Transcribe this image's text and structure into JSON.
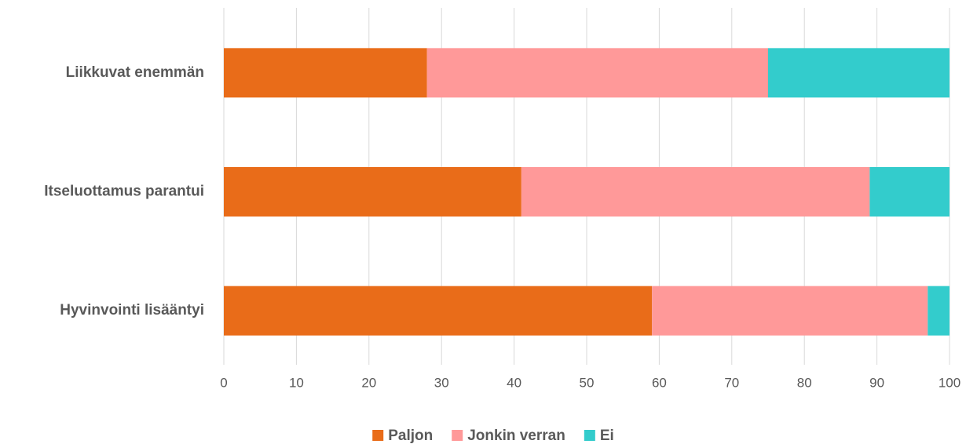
{
  "chart_data": {
    "type": "stacked_bar_horizontal",
    "categories": [
      "Liikkuvat enemmän",
      "Itseluottamus parantui",
      "Hyvinvointi lisääntyi"
    ],
    "series": [
      {
        "name": "Paljon",
        "color": "#e96c19",
        "values": [
          28,
          41,
          59
        ]
      },
      {
        "name": "Jonkin verran",
        "color": "#ff9999",
        "values": [
          47,
          48,
          38
        ]
      },
      {
        "name": "Ei",
        "color": "#33cccc",
        "values": [
          25,
          11,
          3
        ]
      }
    ],
    "xlim": [
      0,
      100
    ],
    "xticks": [
      0,
      10,
      20,
      30,
      40,
      50,
      60,
      70,
      80,
      90,
      100
    ],
    "grid": true,
    "legend": "bottom"
  }
}
